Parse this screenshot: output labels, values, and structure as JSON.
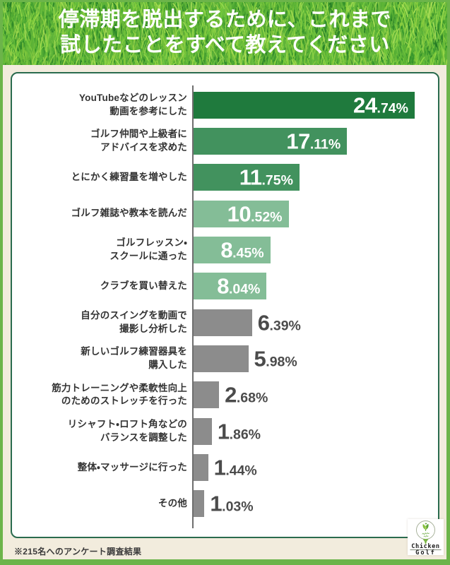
{
  "title": {
    "line1": "停滞期を脱出するために、これまで",
    "line2": "試したことをすべて教えてください"
  },
  "footer": {
    "note": "※215名へのアンケート調査結果"
  },
  "logo": {
    "brand_top": "Chicken",
    "brand_bottom": "Golf"
  },
  "colors": {
    "page_border_green": "#6cb44a",
    "panel_beige": "#f2ecdd",
    "card_border_green": "#2a6b4e",
    "card_bg": "#ffffff",
    "axis_gray": "#6e6e6e",
    "label_text": "#333333",
    "value_text_inside": "#ffffff",
    "value_text_outside": "#4b4b4b",
    "bar_dark_green": "#1f7a3d",
    "bar_mid_green": "#42925e",
    "bar_light_green": "#84bd97",
    "bar_gray": "#8c8c8c"
  },
  "chart_data": {
    "type": "bar",
    "orientation": "horizontal",
    "unit": "%",
    "xlim": [
      0,
      25
    ],
    "grid": false,
    "legend": false,
    "title": "停滞期を脱出するために、これまで試したことをすべて教えてください",
    "categories": [
      "YouTubeなどのレッスン動画を参考にした",
      "ゴルフ仲間や上級者にアドバイスを求めた",
      "とにかく練習量を増やした",
      "ゴルフ雑誌や教本を読んだ",
      "ゴルフレッスン・スクールに通った",
      "クラブを買い替えた",
      "自分のスイングを動画で撮影し分析した",
      "新しいゴルフ練習器具を購入した",
      "筋力トレーニングや柔軟性向上のためのストレッチを行った",
      "リシャフト・ロフト角などのバランスを調整した",
      "整体・マッサージに行った",
      "その他"
    ],
    "values": [
      24.74,
      17.11,
      11.75,
      10.52,
      8.45,
      8.04,
      6.39,
      5.98,
      2.68,
      1.86,
      1.44,
      1.03
    ],
    "items": [
      {
        "label_lines": [
          "YouTubeなどのレッスン",
          "動画を参考にした"
        ],
        "value": 24.74,
        "display": "24.74%",
        "color": "#1f7a3d",
        "value_inside": true
      },
      {
        "label_lines": [
          "ゴルフ仲間や上級者に",
          "アドバイスを求めた"
        ],
        "value": 17.11,
        "display": "17.11%",
        "color": "#42925e",
        "value_inside": true
      },
      {
        "label_lines": [
          "とにかく練習量を増やした"
        ],
        "value": 11.75,
        "display": "11.75%",
        "color": "#42925e",
        "value_inside": true
      },
      {
        "label_lines": [
          "ゴルフ雑誌や教本を読んだ"
        ],
        "value": 10.52,
        "display": "10.52%",
        "color": "#84bd97",
        "value_inside": true
      },
      {
        "label_lines": [
          "ゴルフレッスン・",
          "スクールに通った"
        ],
        "value": 8.45,
        "display": "8.45%",
        "color": "#84bd97",
        "value_inside": true
      },
      {
        "label_lines": [
          "クラブを買い替えた"
        ],
        "value": 8.04,
        "display": "8.04%",
        "color": "#84bd97",
        "value_inside": true
      },
      {
        "label_lines": [
          "自分のスイングを動画で",
          "撮影し分析した"
        ],
        "value": 6.39,
        "display": "6.39%",
        "color": "#8c8c8c",
        "value_inside": false
      },
      {
        "label_lines": [
          "新しいゴルフ練習器具を",
          "購入した"
        ],
        "value": 5.98,
        "display": "5.98%",
        "color": "#8c8c8c",
        "value_inside": false
      },
      {
        "label_lines": [
          "筋力トレーニングや柔軟性向上",
          "のためのストレッチを行った"
        ],
        "value": 2.68,
        "display": "2.68%",
        "color": "#8c8c8c",
        "value_inside": false
      },
      {
        "label_lines": [
          "リシャフト・ロフト角などの",
          "バランスを調整した"
        ],
        "value": 1.86,
        "display": "1.86%",
        "color": "#8c8c8c",
        "value_inside": false
      },
      {
        "label_lines": [
          "整体・マッサージに行った"
        ],
        "value": 1.44,
        "display": "1.44%",
        "color": "#8c8c8c",
        "value_inside": false
      },
      {
        "label_lines": [
          "その他"
        ],
        "value": 1.03,
        "display": "1.03%",
        "color": "#8c8c8c",
        "value_inside": false
      }
    ]
  }
}
